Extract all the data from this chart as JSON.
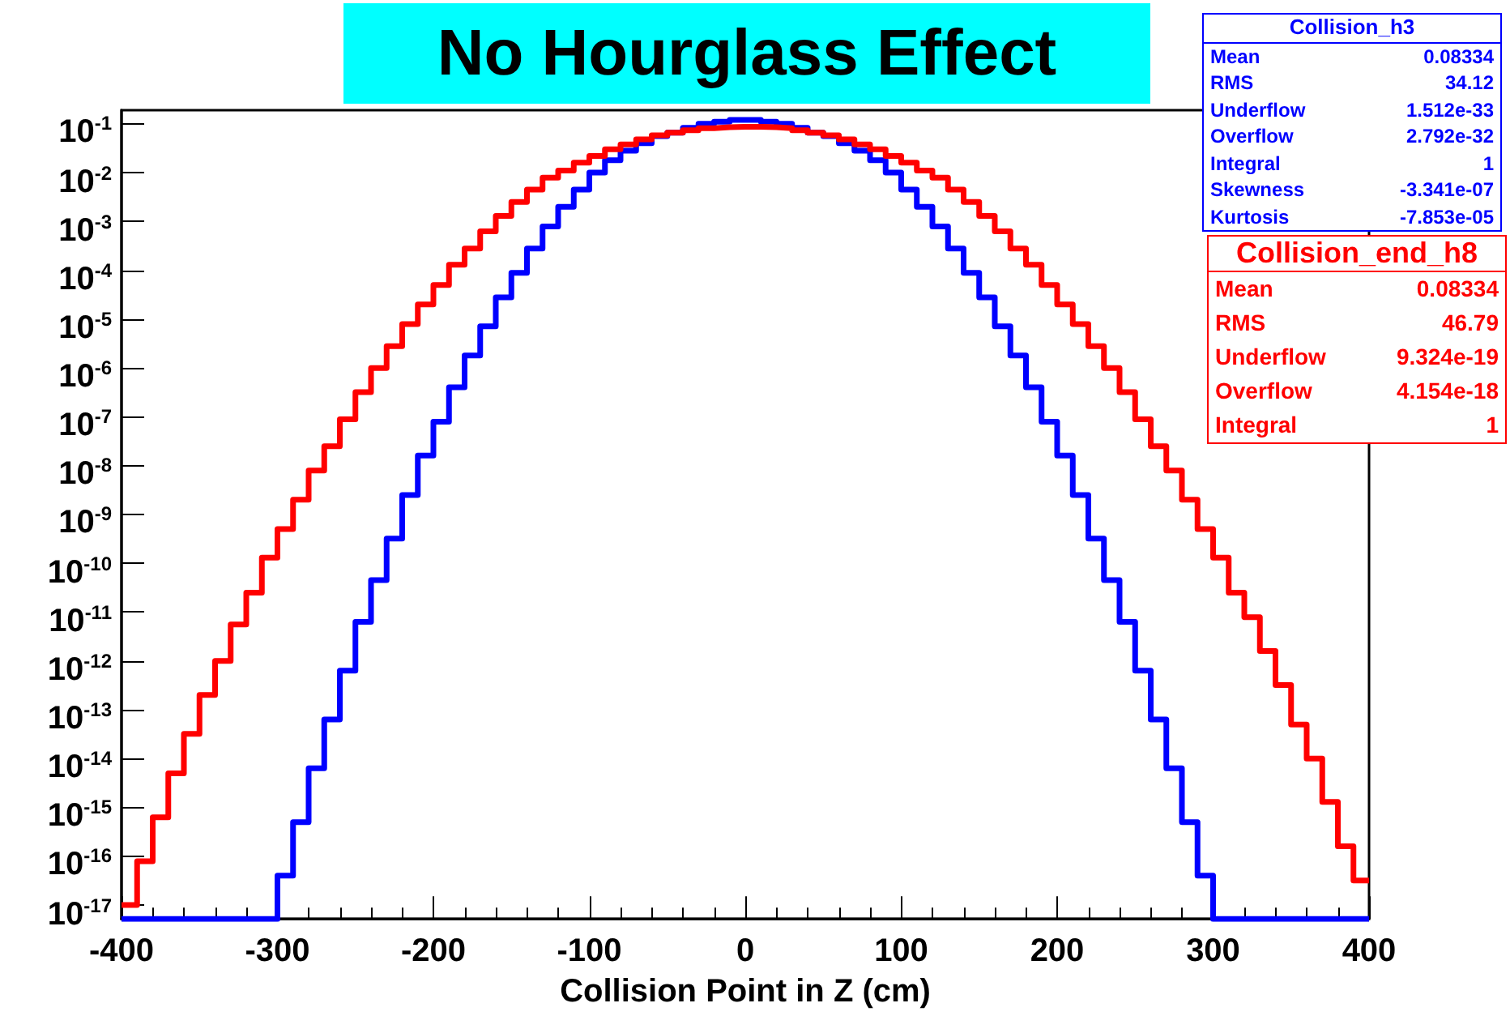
{
  "chart_data": {
    "type": "histogram",
    "title": "No Hourglass Effect",
    "xlabel": "Collision Point in Z (cm)",
    "bins": [
      -400,
      -390,
      -380,
      -370,
      -360,
      -350,
      -340,
      -330,
      -320,
      -310,
      -300,
      -290,
      -280,
      -270,
      -260,
      -250,
      -240,
      -230,
      -220,
      -210,
      -200,
      -190,
      -180,
      -170,
      -160,
      -150,
      -140,
      -130,
      -120,
      -110,
      -100,
      -90,
      -80,
      -70,
      -60,
      -50,
      -40,
      -30,
      -20,
      -10,
      0,
      10,
      20,
      30,
      40,
      50,
      60,
      70,
      80,
      90,
      100,
      110,
      120,
      130,
      140,
      150,
      160,
      170,
      180,
      190,
      200,
      210,
      220,
      230,
      240,
      250,
      260,
      270,
      280,
      290,
      300,
      310,
      320,
      330,
      340,
      350,
      360,
      370,
      380,
      390,
      400
    ],
    "series": [
      {
        "name": "Collision_h3",
        "color": "#0000ff",
        "values": [
          null,
          null,
          null,
          null,
          null,
          null,
          null,
          null,
          null,
          null,
          4e-17,
          5e-16,
          6.3e-15,
          6.3e-14,
          6.3e-13,
          6.3e-12,
          4.5e-11,
          3.2e-10,
          2.5e-09,
          1.6e-08,
          7.9e-08,
          4e-07,
          1.8e-06,
          7.1e-06,
          2.8e-05,
          8.9e-05,
          0.00028,
          0.00079,
          0.002,
          0.0045,
          0.01,
          0.018,
          0.028,
          0.04,
          0.056,
          0.066,
          0.083,
          0.1,
          0.11,
          0.12,
          0.12,
          0.11,
          0.1,
          0.083,
          0.066,
          0.056,
          0.04,
          0.028,
          0.018,
          0.01,
          0.0045,
          0.002,
          0.00079,
          0.00028,
          8.9e-05,
          2.8e-05,
          7.1e-06,
          1.8e-06,
          4e-07,
          7.9e-08,
          1.6e-08,
          2.5e-09,
          3.2e-10,
          4.5e-11,
          6.3e-12,
          6.3e-13,
          6.3e-14,
          6.3e-15,
          5e-16,
          4e-17,
          null,
          null,
          null,
          null,
          null,
          null,
          null,
          null,
          null,
          null
        ]
      },
      {
        "name": "Collision_end_h8",
        "color": "#ff0000",
        "values": [
          1e-17,
          7.9e-17,
          6.3e-16,
          5e-15,
          3.2e-14,
          2e-13,
          1e-12,
          5.6e-12,
          2.5e-11,
          1.3e-10,
          5e-10,
          2e-09,
          7.9e-09,
          2.5e-08,
          8.9e-08,
          3.2e-07,
          1e-06,
          2.8e-06,
          7.9e-06,
          2e-05,
          5e-05,
          0.00013,
          0.00028,
          0.00063,
          0.0013,
          0.0025,
          0.0045,
          0.0079,
          0.011,
          0.016,
          0.022,
          0.03,
          0.038,
          0.048,
          0.058,
          0.066,
          0.074,
          0.081,
          0.085,
          0.087,
          0.087,
          0.085,
          0.081,
          0.074,
          0.066,
          0.058,
          0.048,
          0.038,
          0.03,
          0.022,
          0.016,
          0.011,
          0.0079,
          0.0045,
          0.0025,
          0.0013,
          0.00063,
          0.00028,
          0.00013,
          5e-05,
          2e-05,
          7.9e-06,
          2.8e-06,
          1e-06,
          3.2e-07,
          8.9e-08,
          2.5e-08,
          7.9e-09,
          2e-09,
          5e-10,
          1.3e-10,
          2.5e-11,
          7.9e-12,
          1.6e-12,
          3.2e-13,
          5e-14,
          1e-14,
          1.3e-15,
          1.6e-16,
          3.2e-17
        ]
      }
    ],
    "xlim": [
      -400,
      400
    ],
    "xticks": [
      -400,
      -300,
      -200,
      -100,
      0,
      100,
      200,
      300,
      400
    ],
    "ylim": [
      5.2e-18,
      0.19
    ],
    "log": "y",
    "yticks": [
      {
        "value": 1e-17,
        "label": "10$^{-17}$"
      },
      {
        "value": 1e-16,
        "label": "10$^{-16}$"
      },
      {
        "value": 1e-15,
        "label": "10$^{-15}$"
      },
      {
        "value": 1e-14,
        "label": "10$^{-14}$"
      },
      {
        "value": 1e-13,
        "label": "10$^{-13}$"
      },
      {
        "value": 1e-12,
        "label": "10$^{-12}$"
      },
      {
        "value": 1e-11,
        "label": "10$^{-11}$"
      },
      {
        "value": 1e-10,
        "label": "10$^{-10}$"
      },
      {
        "value": 1e-09,
        "label": "10$^{-9}$"
      },
      {
        "value": 1e-08,
        "label": "10$^{-8}$"
      },
      {
        "value": 1e-07,
        "label": "10$^{-7}$"
      },
      {
        "value": 1e-06,
        "label": "10$^{-6}$"
      },
      {
        "value": 1e-05,
        "label": "10$^{-5}$"
      },
      {
        "value": 0.0001,
        "label": "10$^{-4}$"
      },
      {
        "value": 0.001,
        "label": "10$^{-3}$"
      },
      {
        "value": 0.01,
        "label": "10$^{-2}$"
      },
      {
        "value": 0.1,
        "label": "10$^{-1}$"
      }
    ],
    "grid": false,
    "line_style": "solid",
    "marker": "none",
    "annotations": [
      "Mean 0.08334",
      "RMS 34.12",
      "Underflow 1.512e-33",
      "Overflow 2.792e-32",
      "Integral 1",
      "Skewness -3.341e-07",
      "Kurtosis -7.853e-05",
      "Mean 0.08334",
      "RMS 46.79",
      "Underflow 9.324e-19",
      "Overflow 4.154e-18",
      "Integral 1"
    ]
  }
}
